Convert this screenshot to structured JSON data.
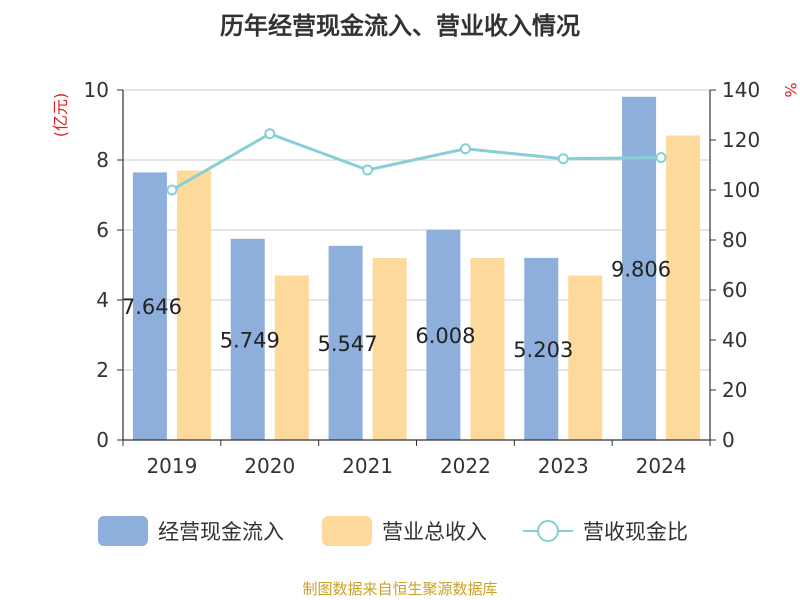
{
  "chart_data": {
    "type": "bar",
    "title": "历年经营现金流入、营业收入情况",
    "categories": [
      "2019",
      "2020",
      "2021",
      "2022",
      "2023",
      "2024"
    ],
    "y_left": {
      "label": "(亿元)",
      "ylim": [
        0,
        10
      ],
      "ticks": [
        0,
        2,
        4,
        6,
        8,
        10
      ]
    },
    "y_right": {
      "label": "%",
      "ylim": [
        0,
        140
      ],
      "ticks": [
        0,
        20,
        40,
        60,
        80,
        100,
        120,
        140
      ]
    },
    "series": [
      {
        "name": "经营现金流入",
        "kind": "bar",
        "axis": "left",
        "color": "#8eaedb",
        "values": [
          7.646,
          5.749,
          5.547,
          6.008,
          5.203,
          9.806
        ],
        "labels": [
          "7.646",
          "5.749",
          "5.547",
          "6.008",
          "5.203",
          "9.806"
        ]
      },
      {
        "name": "营业总收入",
        "kind": "bar",
        "axis": "left",
        "color": "#fdd99b",
        "values": [
          7.7,
          4.7,
          5.2,
          5.2,
          4.7,
          8.7
        ]
      },
      {
        "name": "营收现金比",
        "kind": "line",
        "axis": "right",
        "color": "#86cfd7",
        "values": [
          100,
          122.5,
          108,
          116.5,
          112.5,
          113
        ]
      }
    ],
    "grid": true,
    "legend_position": "bottom"
  },
  "source": "制图数据来自恒生聚源数据库"
}
